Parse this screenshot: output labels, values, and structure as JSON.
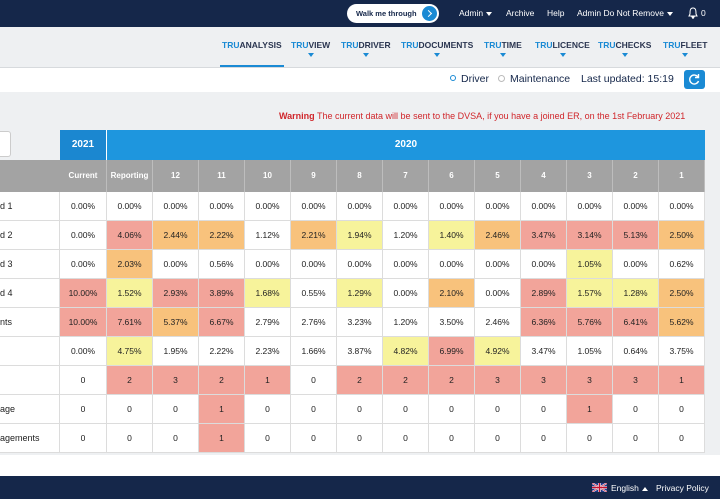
{
  "top_bar": {
    "walk_me_through": "Walk me through",
    "links": [
      "Admin",
      "Archive",
      "Help",
      "Admin Do Not Remove"
    ],
    "notifications": "0"
  },
  "nav": [
    {
      "brand": "TRU",
      "name": "ANALYSIS"
    },
    {
      "brand": "TRU",
      "name": "VIEW"
    },
    {
      "brand": "TRU",
      "name": "DRIVER"
    },
    {
      "brand": "TRU",
      "name": "DOCUMENTS"
    },
    {
      "brand": "TRU",
      "name": "TIME"
    },
    {
      "brand": "TRU",
      "name": "LICENCE"
    },
    {
      "brand": "TRU",
      "name": "CHECKS"
    },
    {
      "brand": "TRU",
      "name": "FLEET"
    }
  ],
  "filter": {
    "options": [
      "Driver",
      "Maintenance"
    ],
    "last_updated": "Last updated: 15:19"
  },
  "warning": {
    "label": "Warning",
    "text": "The current data will be sent to the DVSA, if you have a joined ER, on the 1st February 2021"
  },
  "table": {
    "years": [
      "2021",
      "2020"
    ],
    "columns": [
      "Current",
      "Reporting",
      "12",
      "11",
      "10",
      "9",
      "8",
      "7",
      "6",
      "5",
      "4",
      "3",
      "2",
      "1"
    ],
    "rows": [
      {
        "label": "d 1",
        "cells": [
          "0.00%",
          "0.00%",
          "0.00%",
          "0.00%",
          "0.00%",
          "0.00%",
          "0.00%",
          "0.00%",
          "0.00%",
          "0.00%",
          "0.00%",
          "0.00%",
          "0.00%",
          "0.00%"
        ],
        "colors": [
          "#ffffff",
          "#ffffff",
          "#ffffff",
          "#ffffff",
          "#ffffff",
          "#ffffff",
          "#ffffff",
          "#ffffff",
          "#ffffff",
          "#ffffff",
          "#ffffff",
          "#ffffff",
          "#ffffff",
          "#ffffff"
        ]
      },
      {
        "label": "d 2",
        "cells": [
          "0.00%",
          "4.06%",
          "2.44%",
          "2.22%",
          "1.12%",
          "2.21%",
          "1.94%",
          "1.20%",
          "1.40%",
          "2.46%",
          "3.47%",
          "3.14%",
          "5.13%",
          "2.50%"
        ],
        "colors": [
          "#ffffff",
          "#f2a49a",
          "#f8c27c",
          "#f8c27c",
          "#ffffff",
          "#f8c27c",
          "#f7f39b",
          "#ffffff",
          "#f7f39b",
          "#f8c27c",
          "#f2a49a",
          "#f2a49a",
          "#f2a49a",
          "#f8c27c"
        ]
      },
      {
        "label": "d 3",
        "cells": [
          "0.00%",
          "2.03%",
          "0.00%",
          "0.56%",
          "0.00%",
          "0.00%",
          "0.00%",
          "0.00%",
          "0.00%",
          "0.00%",
          "0.00%",
          "1.05%",
          "0.00%",
          "0.62%"
        ],
        "colors": [
          "#ffffff",
          "#f8c27c",
          "#ffffff",
          "#ffffff",
          "#ffffff",
          "#ffffff",
          "#ffffff",
          "#ffffff",
          "#ffffff",
          "#ffffff",
          "#ffffff",
          "#f7f39b",
          "#ffffff",
          "#ffffff"
        ]
      },
      {
        "label": "d 4",
        "cells": [
          "10.00%",
          "1.52%",
          "2.93%",
          "3.89%",
          "1.68%",
          "0.55%",
          "1.29%",
          "0.00%",
          "2.10%",
          "0.00%",
          "2.89%",
          "1.57%",
          "1.28%",
          "2.50%"
        ],
        "colors": [
          "#f2a49a",
          "#f7f39b",
          "#f2a49a",
          "#f2a49a",
          "#f7f39b",
          "#ffffff",
          "#f7f39b",
          "#ffffff",
          "#f8c27c",
          "#ffffff",
          "#f2a49a",
          "#f7f39b",
          "#f7f39b",
          "#f8c27c"
        ]
      },
      {
        "label": "nts",
        "cells": [
          "10.00%",
          "7.61%",
          "5.37%",
          "6.67%",
          "2.79%",
          "2.76%",
          "3.23%",
          "1.20%",
          "3.50%",
          "2.46%",
          "6.36%",
          "5.76%",
          "6.41%",
          "5.62%"
        ],
        "colors": [
          "#f2a49a",
          "#f2a49a",
          "#f8c27c",
          "#f2a49a",
          "#ffffff",
          "#ffffff",
          "#ffffff",
          "#ffffff",
          "#ffffff",
          "#ffffff",
          "#f2a49a",
          "#f2a49a",
          "#f2a49a",
          "#f8c27c"
        ]
      },
      {
        "label": null,
        "cells": [
          "0.00%",
          "4.75%",
          "1.95%",
          "2.22%",
          "2.23%",
          "1.66%",
          "3.87%",
          "4.82%",
          "6.99%",
          "4.92%",
          "3.47%",
          "1.05%",
          "0.64%",
          "3.75%"
        ],
        "colors": [
          "#ffffff",
          "#f7f39b",
          "#ffffff",
          "#ffffff",
          "#ffffff",
          "#ffffff",
          "#ffffff",
          "#f7f39b",
          "#f2a49a",
          "#f7f39b",
          "#ffffff",
          "#ffffff",
          "#ffffff",
          "#ffffff"
        ]
      },
      {
        "label": null,
        "cells": [
          "0",
          "2",
          "3",
          "2",
          "1",
          "0",
          "2",
          "2",
          "2",
          "3",
          "3",
          "3",
          "3",
          "1"
        ],
        "colors": [
          "#ffffff",
          "#f2a49a",
          "#f2a49a",
          "#f2a49a",
          "#f2a49a",
          "#ffffff",
          "#f2a49a",
          "#f2a49a",
          "#f2a49a",
          "#f2a49a",
          "#f2a49a",
          "#f2a49a",
          "#f2a49a",
          "#f2a49a"
        ]
      },
      {
        "label": "age",
        "cells": [
          "0",
          "0",
          "0",
          "1",
          "0",
          "0",
          "0",
          "0",
          "0",
          "0",
          "0",
          "1",
          "0",
          "0"
        ],
        "colors": [
          "#ffffff",
          "#ffffff",
          "#ffffff",
          "#f2a49a",
          "#ffffff",
          "#ffffff",
          "#ffffff",
          "#ffffff",
          "#ffffff",
          "#ffffff",
          "#ffffff",
          "#f2a49a",
          "#ffffff",
          "#ffffff"
        ]
      },
      {
        "label": "agements",
        "cells": [
          "0",
          "0",
          "0",
          "1",
          "0",
          "0",
          "0",
          "0",
          "0",
          "0",
          "0",
          "0",
          "0",
          "0"
        ],
        "colors": [
          "#ffffff",
          "#ffffff",
          "#ffffff",
          "#f2a49a",
          "#ffffff",
          "#ffffff",
          "#ffffff",
          "#ffffff",
          "#ffffff",
          "#ffffff",
          "#ffffff",
          "#ffffff",
          "#ffffff",
          "#ffffff"
        ]
      }
    ]
  },
  "footer": {
    "language": "English",
    "privacy": "Privacy Policy"
  }
}
